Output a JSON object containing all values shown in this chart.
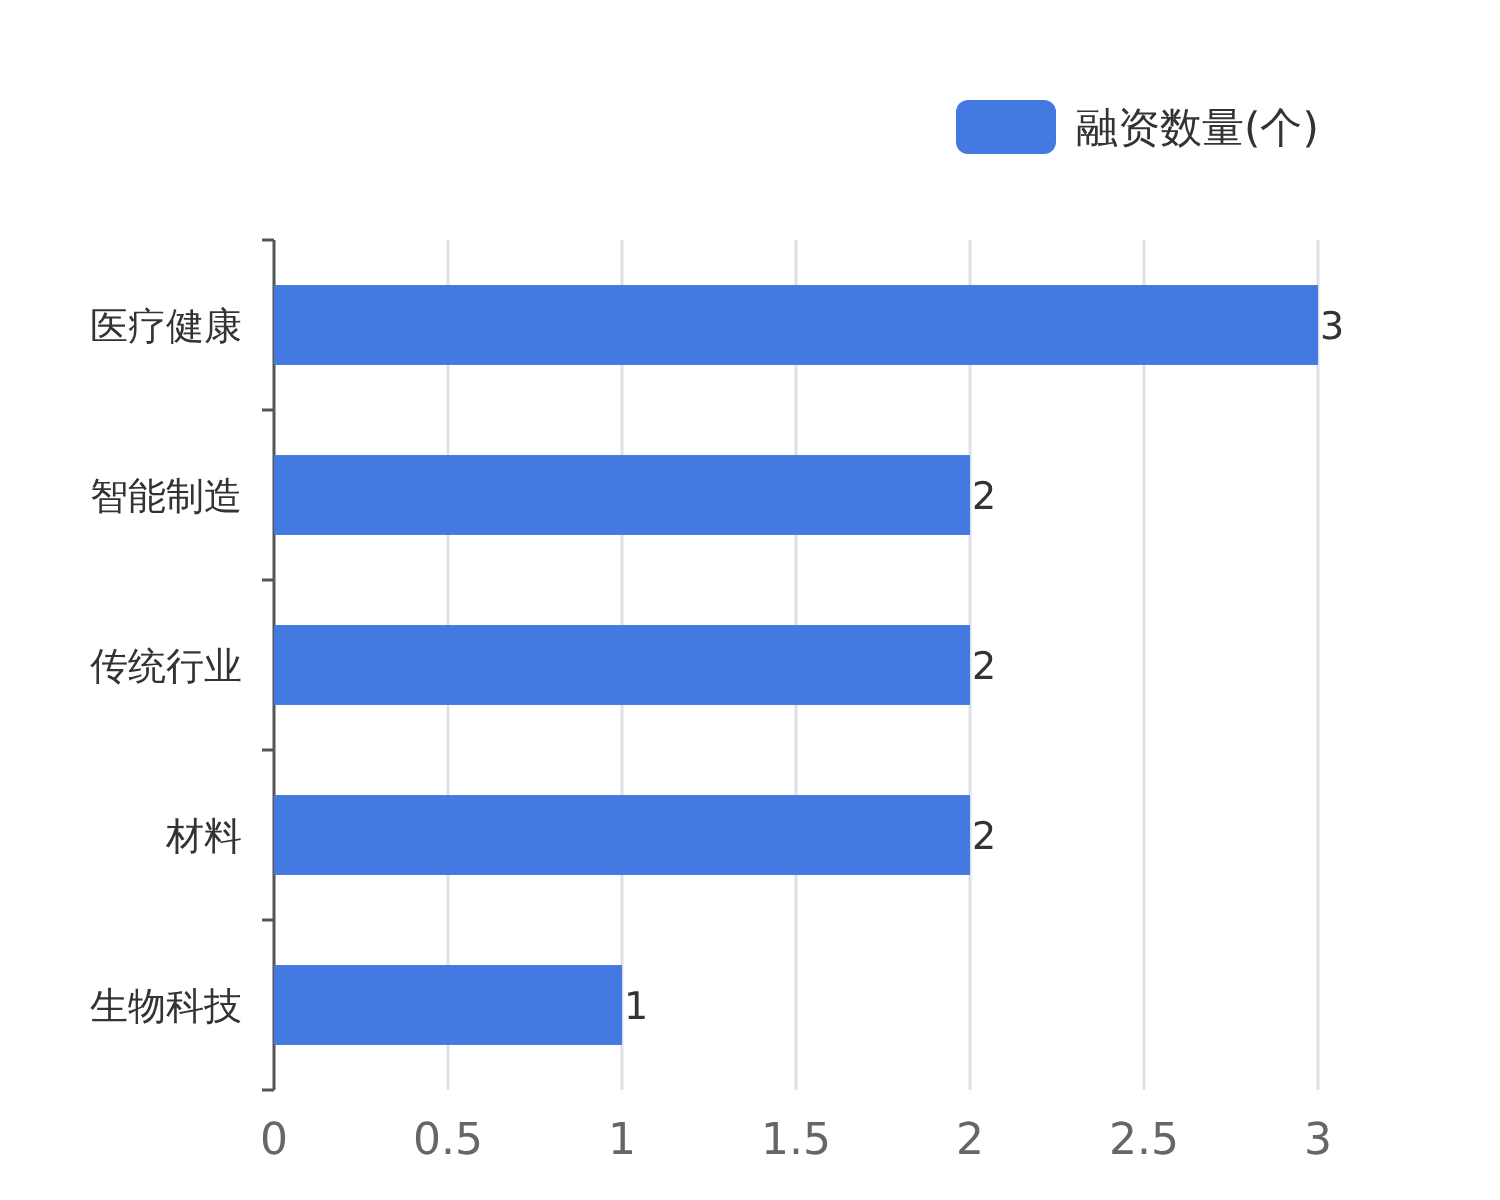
{
  "chart_data": {
    "type": "bar",
    "orientation": "horizontal",
    "categories": [
      "医疗健康",
      "智能制造",
      "传统行业",
      "材料",
      "生物科技"
    ],
    "series": [
      {
        "name": "融资数量(个)",
        "color": "#4479e1",
        "values": [
          3,
          2,
          2,
          2,
          1
        ]
      }
    ],
    "xlim": [
      0,
      3
    ],
    "xticks": [
      0,
      0.5,
      1,
      1.5,
      2,
      2.5,
      3
    ],
    "grid": "x",
    "legend": "top right",
    "data_labels": true
  }
}
